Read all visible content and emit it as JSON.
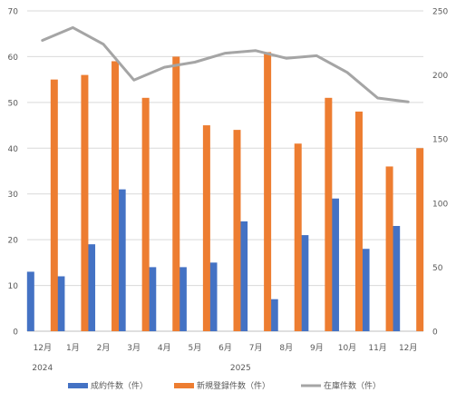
{
  "chart_data": {
    "type": "bar",
    "categories": [
      "12月",
      "1月",
      "2月",
      "3月",
      "4月",
      "5月",
      "6月",
      "7月",
      "8月",
      "9月",
      "10月",
      "11月",
      "12月"
    ],
    "year_labels": [
      {
        "label": "2024",
        "category_index": 0
      },
      {
        "label": "2025",
        "category_index": 6.5
      }
    ],
    "series": [
      {
        "name": "成約件数（件）",
        "type": "bar",
        "axis": "left",
        "color": "#4472C4",
        "values": [
          13,
          12,
          19,
          31,
          14,
          14,
          15,
          24,
          7,
          21,
          29,
          18,
          23
        ]
      },
      {
        "name": "新規登録件数（件）",
        "type": "bar",
        "axis": "left",
        "color": "#ED7D31",
        "values": [
          55,
          56,
          59,
          51,
          60,
          45,
          44,
          61,
          41,
          51,
          48,
          36,
          40
        ]
      },
      {
        "name": "在庫件数（件）",
        "type": "line",
        "axis": "right",
        "color": "#A5A5A5",
        "values": [
          227,
          237,
          224,
          196,
          206,
          210,
          217,
          219,
          213,
          215,
          202,
          182,
          179
        ]
      }
    ],
    "y_left": {
      "min": 0,
      "max": 70,
      "ticks": [
        "0",
        "10",
        "20",
        "30",
        "40",
        "50",
        "60",
        "70"
      ]
    },
    "y_right": {
      "min": 0,
      "max": 250,
      "ticks": [
        "0",
        "50",
        "100",
        "150",
        "200",
        "250"
      ]
    },
    "grid": true,
    "legend_position": "bottom"
  }
}
